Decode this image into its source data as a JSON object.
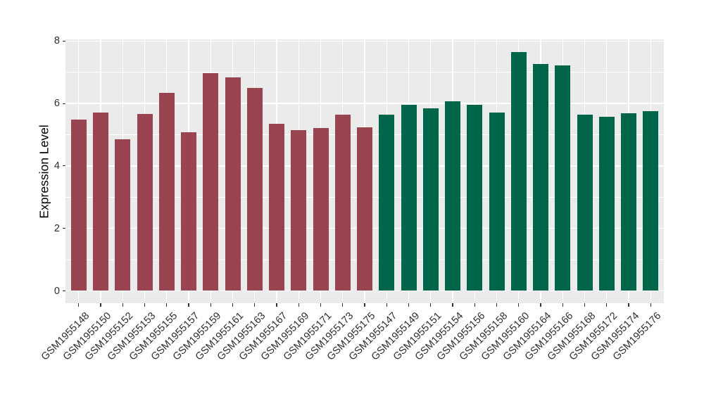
{
  "chart_data": {
    "type": "bar",
    "title": "",
    "xlabel": "",
    "ylabel": "Expression Level",
    "ylim": [
      0,
      8
    ],
    "yticks": [
      0,
      2,
      4,
      6,
      8
    ],
    "yticks_minor": [
      1,
      3,
      5,
      7
    ],
    "grid": "on",
    "legend_position": "none",
    "panel_background": "#EBEBEB",
    "gridline_color": "#FFFFFF",
    "tick_color": "#333333",
    "series": [
      {
        "name": "group-red",
        "color": "#9B4451",
        "categories": [
          "GSM1955148",
          "GSM1955150",
          "GSM1955152",
          "GSM1955153",
          "GSM1955155",
          "GSM1955157",
          "GSM1955159",
          "GSM1955161",
          "GSM1955163",
          "GSM1955167",
          "GSM1955169",
          "GSM1955171",
          "GSM1955173",
          "GSM1955175"
        ],
        "values": [
          5.48,
          5.71,
          4.85,
          5.66,
          6.34,
          5.07,
          6.98,
          6.84,
          6.5,
          5.36,
          5.15,
          5.21,
          5.64,
          5.23
        ]
      },
      {
        "name": "group-green",
        "color": "#016649",
        "categories": [
          "GSM1955147",
          "GSM1955149",
          "GSM1955151",
          "GSM1955154",
          "GSM1955156",
          "GSM1955158",
          "GSM1955160",
          "GSM1955164",
          "GSM1955166",
          "GSM1955168",
          "GSM1955172",
          "GSM1955174",
          "GSM1955176"
        ],
        "values": [
          5.64,
          5.95,
          5.84,
          6.07,
          5.95,
          5.7,
          7.65,
          7.26,
          7.21,
          5.65,
          5.57,
          5.69,
          5.76
        ]
      }
    ]
  }
}
